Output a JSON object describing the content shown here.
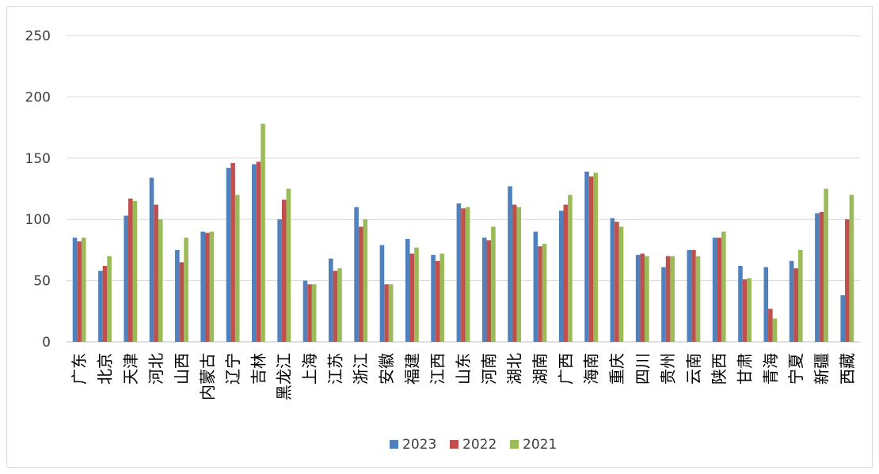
{
  "chart_data": {
    "type": "bar",
    "categories": [
      "广东",
      "北京",
      "天津",
      "河北",
      "山西",
      "内蒙古",
      "辽宁",
      "吉林",
      "黑龙江",
      "上海",
      "江苏",
      "浙江",
      "安徽",
      "福建",
      "江西",
      "山东",
      "河南",
      "湖北",
      "湖南",
      "广西",
      "海南",
      "重庆",
      "四川",
      "贵州",
      "云南",
      "陕西",
      "甘肃",
      "青海",
      "宁夏",
      "新疆",
      "西藏"
    ],
    "series": [
      {
        "name": "2023",
        "color": "#4f81bd",
        "values": [
          85,
          58,
          103,
          134,
          75,
          90,
          142,
          145,
          100,
          50,
          68,
          110,
          79,
          84,
          71,
          113,
          85,
          127,
          90,
          107,
          139,
          101,
          71,
          61,
          75,
          85,
          62,
          61,
          66,
          105,
          38
        ]
      },
      {
        "name": "2022",
        "color": "#c0504d",
        "values": [
          82,
          62,
          117,
          112,
          65,
          89,
          146,
          147,
          116,
          47,
          58,
          94,
          47,
          72,
          66,
          109,
          83,
          112,
          78,
          112,
          135,
          98,
          72,
          70,
          75,
          85,
          51,
          27,
          60,
          106,
          100
        ]
      },
      {
        "name": "2021",
        "color": "#9bbb59",
        "values": [
          85,
          70,
          115,
          100,
          85,
          90,
          120,
          178,
          125,
          47,
          60,
          100,
          47,
          77,
          72,
          110,
          94,
          110,
          80,
          120,
          138,
          94,
          70,
          70,
          70,
          90,
          52,
          19,
          75,
          125,
          120
        ]
      }
    ],
    "ylim": [
      0,
      250
    ],
    "yticks": [
      0,
      50,
      100,
      150,
      200,
      250
    ],
    "grid": true,
    "legend_position": "bottom-center",
    "title": "",
    "xlabel": "",
    "ylabel": ""
  }
}
